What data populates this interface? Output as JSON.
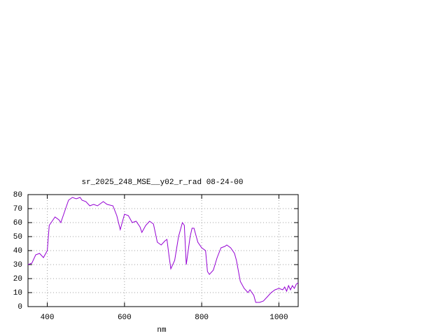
{
  "chart_data": {
    "type": "line",
    "title": "sr_2025_248_MSE__y02_r_rad 08-24-00",
    "x_label": "nm",
    "xlim": [
      350,
      1050
    ],
    "ylim": [
      0,
      80
    ],
    "xticks": [
      400,
      600,
      800,
      1000
    ],
    "yticks": [
      0,
      10,
      20,
      30,
      40,
      50,
      60,
      70,
      80
    ],
    "grid": true,
    "x": [
      350,
      360,
      370,
      380,
      390,
      400,
      405,
      415,
      420,
      430,
      435,
      445,
      455,
      465,
      475,
      485,
      490,
      500,
      510,
      520,
      530,
      545,
      555,
      570,
      580,
      589,
      600,
      610,
      620,
      630,
      640,
      645,
      655,
      665,
      675,
      685,
      695,
      705,
      710,
      715,
      720,
      730,
      740,
      750,
      755,
      760,
      770,
      775,
      780,
      790,
      800,
      810,
      815,
      820,
      830,
      840,
      850,
      860,
      865,
      875,
      885,
      890,
      900,
      910,
      920,
      925,
      935,
      940,
      950,
      960,
      970,
      980,
      990,
      1000,
      1010,
      1015,
      1020,
      1025,
      1030,
      1035,
      1040,
      1045,
      1050
    ],
    "series": [
      {
        "color": "#9400d3",
        "values": [
          30,
          31,
          37,
          38,
          35,
          40,
          58,
          62,
          64,
          62,
          60,
          68,
          76,
          78,
          77,
          78,
          76,
          75,
          72,
          73,
          72,
          75,
          73,
          72,
          65,
          55,
          66,
          65,
          60,
          61,
          57,
          53,
          58,
          61,
          59,
          46,
          44,
          47,
          48,
          37,
          27,
          33,
          50,
          60,
          58,
          30,
          50,
          56,
          56,
          46,
          42,
          40,
          25,
          23,
          26,
          35,
          42,
          43,
          44,
          42,
          38,
          33,
          18,
          13,
          10,
          12,
          8,
          3,
          3,
          4,
          7,
          10,
          12,
          13,
          12,
          14,
          11,
          15,
          12,
          15,
          13,
          16,
          17
        ]
      }
    ]
  }
}
